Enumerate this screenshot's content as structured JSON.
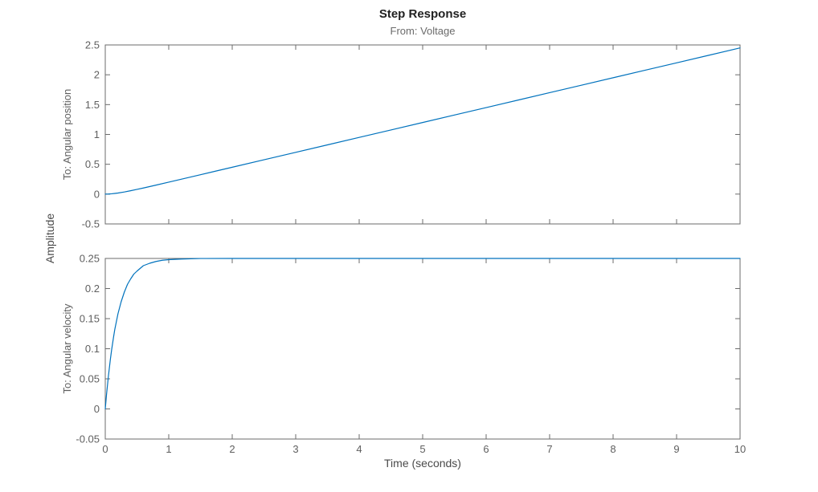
{
  "figure": {
    "title": "Step Response",
    "subtitle": "From: Voltage",
    "shared_ylabel": "Amplitude",
    "xlabel": "Time (seconds)",
    "colors": {
      "line": "#0072bd",
      "axis": "#6b6b6b",
      "tick_text": "#5f5f5f",
      "title_text": "#212121",
      "subtitle_text": "#6b6b6b",
      "background": "#ffffff"
    }
  },
  "chart_data": [
    {
      "type": "line",
      "title": "Step Response",
      "subtitle": "From: Voltage",
      "ylabel": "To: Angular position",
      "xlabel": "",
      "legend": [],
      "grid": false,
      "xlim": [
        0,
        10
      ],
      "ylim": [
        -0.5,
        2.5
      ],
      "xticks": [
        0,
        1,
        2,
        3,
        4,
        5,
        6,
        7,
        8,
        9,
        10
      ],
      "xtick_labels": [
        "0",
        "1",
        "2",
        "3",
        "4",
        "5",
        "6",
        "7",
        "8",
        "9",
        "10"
      ],
      "show_xtick_labels": false,
      "yticks": [
        -0.5,
        0,
        0.5,
        1,
        1.5,
        2,
        2.5
      ],
      "ytick_labels": [
        "-0.5",
        "0",
        "0.5",
        "1",
        "1.5",
        "2",
        "2.5"
      ],
      "x": [
        0,
        0.05,
        0.1,
        0.15,
        0.2,
        0.3,
        0.4,
        0.5,
        0.6,
        0.8,
        1,
        1.25,
        1.5,
        1.75,
        2,
        2.5,
        3,
        3.5,
        4,
        4.5,
        5,
        5.5,
        6,
        6.5,
        7,
        7.5,
        8,
        8.5,
        9,
        9.5,
        10
      ],
      "y": [
        0,
        0.001,
        0.005,
        0.011,
        0.018,
        0.036,
        0.057,
        0.079,
        0.102,
        0.151,
        0.2,
        0.263,
        0.325,
        0.388,
        0.45,
        0.575,
        0.7,
        0.825,
        0.95,
        1.075,
        1.2,
        1.325,
        1.45,
        1.575,
        1.7,
        1.825,
        1.95,
        2.075,
        2.2,
        2.325,
        2.45
      ],
      "line_color": "#0072bd"
    },
    {
      "type": "line",
      "title": "Step Response",
      "subtitle": "From: Voltage",
      "ylabel": "To: Angular velocity",
      "xlabel": "Time (seconds)",
      "legend": [],
      "grid": false,
      "xlim": [
        0,
        10
      ],
      "ylim": [
        -0.05,
        0.25
      ],
      "xticks": [
        0,
        1,
        2,
        3,
        4,
        5,
        6,
        7,
        8,
        9,
        10
      ],
      "xtick_labels": [
        "0",
        "1",
        "2",
        "3",
        "4",
        "5",
        "6",
        "7",
        "8",
        "9",
        "10"
      ],
      "show_xtick_labels": true,
      "yticks": [
        -0.05,
        0,
        0.05,
        0.1,
        0.15,
        0.2,
        0.25
      ],
      "ytick_labels": [
        "-0.05",
        "0",
        "0.05",
        "0.1",
        "0.15",
        "0.2",
        "0.25"
      ],
      "x": [
        0,
        0.02,
        0.05,
        0.08,
        0.1,
        0.13,
        0.15,
        0.2,
        0.25,
        0.3,
        0.35,
        0.4,
        0.45,
        0.5,
        0.6,
        0.7,
        0.8,
        0.9,
        1,
        1.2,
        1.5,
        2,
        3,
        4,
        5,
        6,
        7,
        8,
        9,
        10
      ],
      "y": [
        0,
        0.024,
        0.055,
        0.082,
        0.098,
        0.119,
        0.132,
        0.158,
        0.178,
        0.194,
        0.207,
        0.216,
        0.224,
        0.229,
        0.238,
        0.242,
        0.245,
        0.247,
        0.248,
        0.249,
        0.2499,
        0.25,
        0.25,
        0.25,
        0.25,
        0.25,
        0.25,
        0.25,
        0.25,
        0.25
      ],
      "line_color": "#0072bd"
    }
  ]
}
